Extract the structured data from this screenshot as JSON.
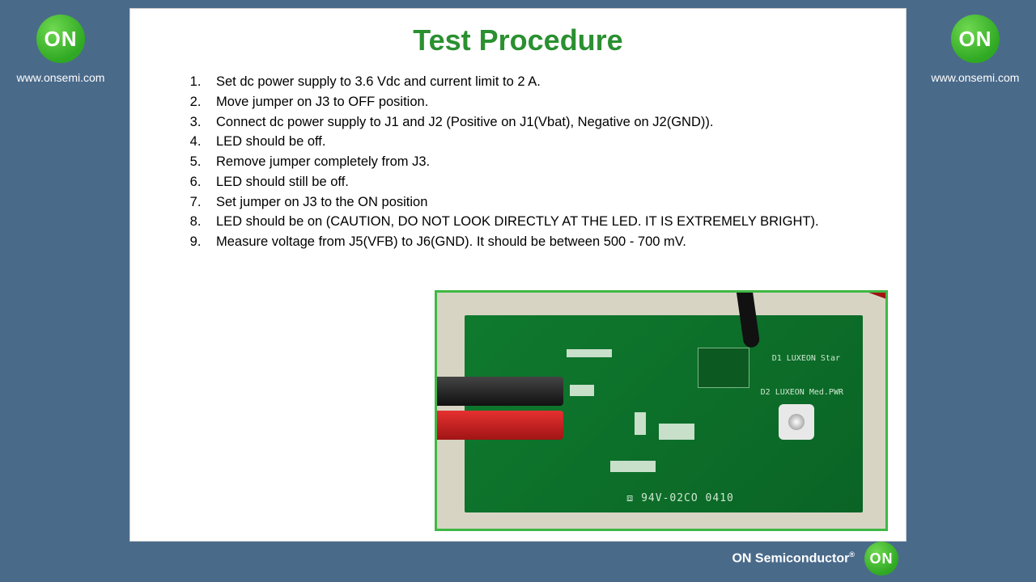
{
  "brand": {
    "logo_text": "ON",
    "url": "www.onsemi.com",
    "footer_text": "ON Semiconductor",
    "accent_color": "#2fa823",
    "title_color": "#2a9030",
    "background_color": "#4a6a8a"
  },
  "slide": {
    "title": "Test Procedure",
    "steps": [
      "Set dc power supply to 3.6 Vdc and current limit to 2 A.",
      "Move jumper on J3 to OFF position.",
      "Connect dc power supply to J1 and J2 (Positive on J1(Vbat), Negative on J2(GND)).",
      "LED should be off.",
      "Remove jumper completely from J3.",
      "LED should still be off.",
      "Set jumper on J3 to the ON position",
      "LED should be on (CAUTION, DO NOT LOOK DIRECTLY AT THE LED. IT IS EXTREMELY BRIGHT).",
      "Measure voltage from J5(VFB) to J6(GND). It should be between 500 - 700 mV."
    ]
  },
  "board": {
    "border_color": "#3fb845",
    "pcb_color": "#0a6425",
    "bg_texture_color": "#d8d4c4",
    "silkscreen": {
      "d1": "D1\nLUXEON Star",
      "d2": "D2\nLUXEON Med.PWR",
      "code": "⧈ 94V-02CO 0410"
    },
    "connectors": {
      "black": "#111111",
      "red": "#c01818"
    }
  }
}
